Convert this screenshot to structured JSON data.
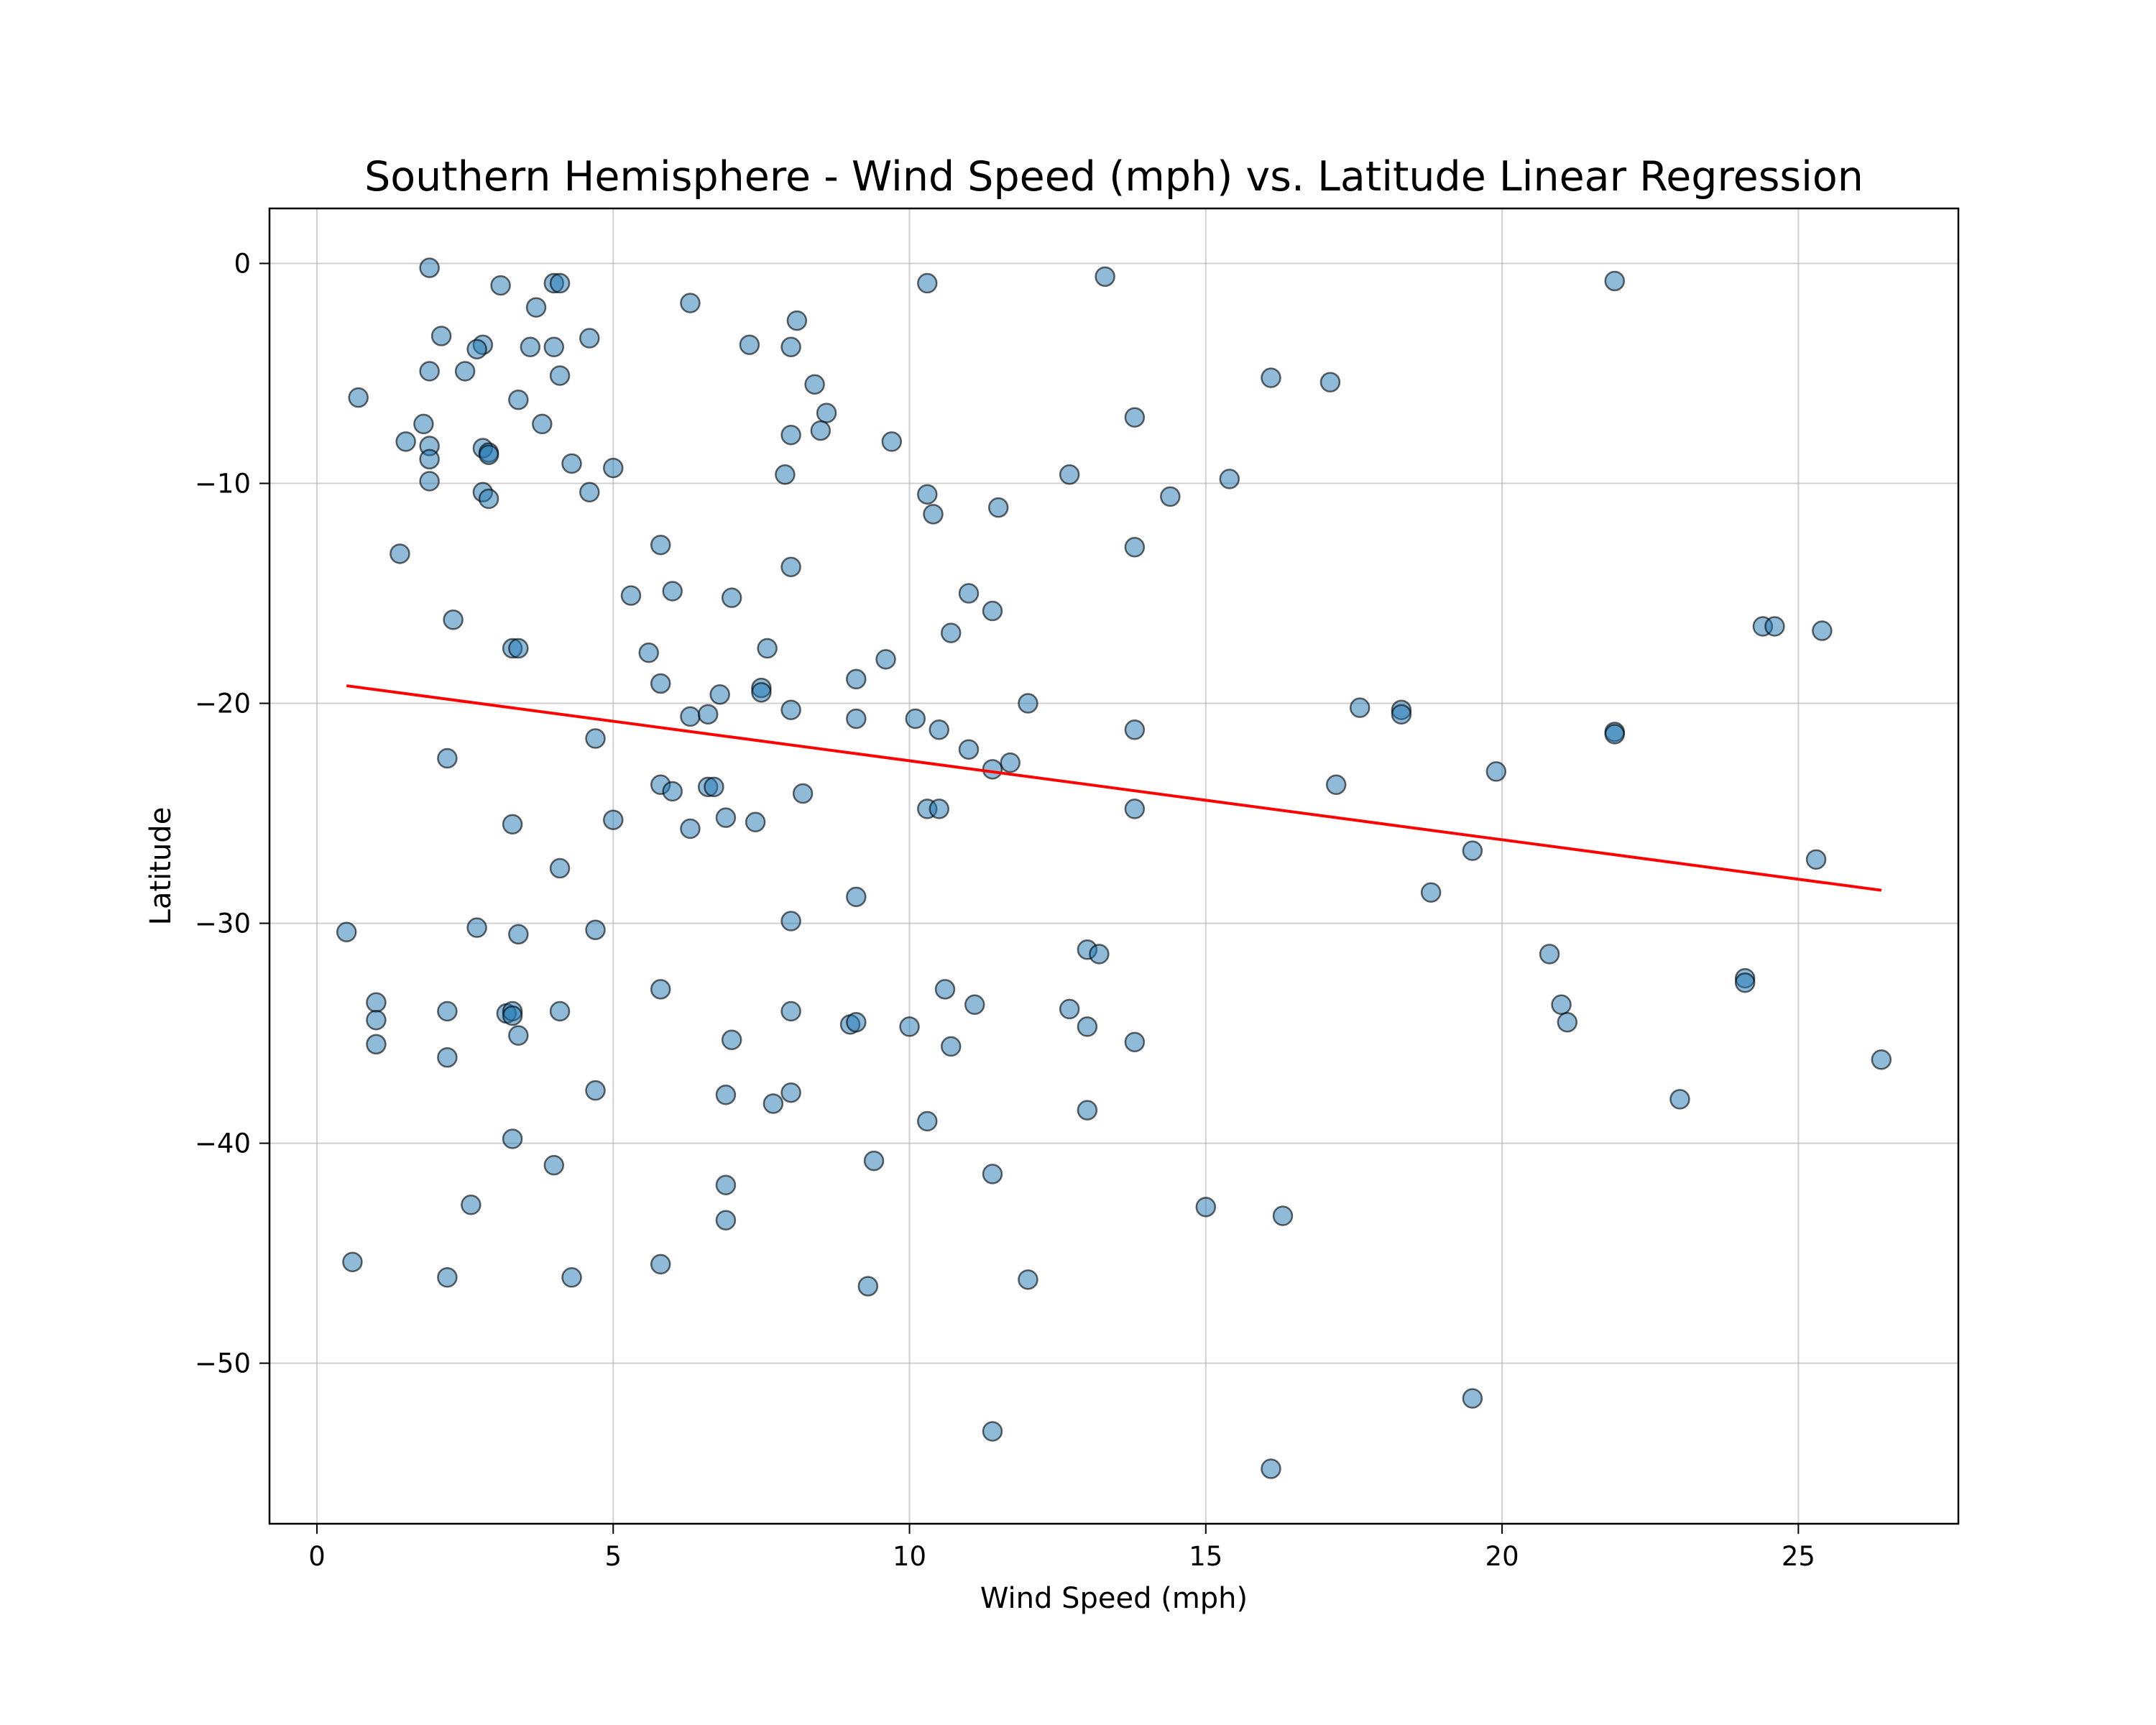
{
  "chart_data": {
    "type": "scatter",
    "title": "Southern Hemisphere - Wind Speed (mph) vs. Latitude Linear Regression",
    "xlabel": "Wind Speed (mph)",
    "ylabel": "Latitude",
    "xlim": [
      -0.8,
      27.7
    ],
    "ylim": [
      -57.3,
      2.5
    ],
    "xticks": [
      0,
      5,
      10,
      15,
      20,
      25
    ],
    "yticks": [
      0,
      -10,
      -20,
      -30,
      -40,
      -50
    ],
    "grid": true,
    "point_color": "#1f77b4",
    "line_color": "#ff0000",
    "points": [
      [
        1.9,
        -0.2
      ],
      [
        3.1,
        -1.0
      ],
      [
        4.0,
        -0.9
      ],
      [
        4.1,
        -0.9
      ],
      [
        6.3,
        -1.8
      ],
      [
        10.3,
        -0.9
      ],
      [
        13.3,
        -0.6
      ],
      [
        21.9,
        -0.8
      ],
      [
        3.7,
        -2.0
      ],
      [
        8.1,
        -2.6
      ],
      [
        2.1,
        -3.3
      ],
      [
        2.8,
        -3.7
      ],
      [
        2.7,
        -3.9
      ],
      [
        3.6,
        -3.8
      ],
      [
        4.0,
        -3.8
      ],
      [
        4.6,
        -3.4
      ],
      [
        7.3,
        -3.7
      ],
      [
        8.0,
        -3.8
      ],
      [
        1.9,
        -4.9
      ],
      [
        2.5,
        -4.9
      ],
      [
        4.1,
        -5.1
      ],
      [
        8.4,
        -5.5
      ],
      [
        16.1,
        -5.2
      ],
      [
        17.1,
        -5.4
      ],
      [
        0.7,
        -6.1
      ],
      [
        3.4,
        -6.2
      ],
      [
        8.6,
        -6.8
      ],
      [
        13.8,
        -7.0
      ],
      [
        1.8,
        -7.3
      ],
      [
        3.8,
        -7.3
      ],
      [
        8.5,
        -7.6
      ],
      [
        8.0,
        -7.8
      ],
      [
        1.5,
        -8.1
      ],
      [
        9.7,
        -8.1
      ],
      [
        1.9,
        -8.3
      ],
      [
        2.8,
        -8.4
      ],
      [
        2.9,
        -8.6
      ],
      [
        2.9,
        -8.7
      ],
      [
        1.9,
        -8.9
      ],
      [
        4.3,
        -9.1
      ],
      [
        5.0,
        -9.3
      ],
      [
        7.9,
        -9.6
      ],
      [
        12.7,
        -9.6
      ],
      [
        15.4,
        -9.8
      ],
      [
        1.9,
        -9.9
      ],
      [
        2.8,
        -10.4
      ],
      [
        4.6,
        -10.4
      ],
      [
        10.3,
        -10.5
      ],
      [
        14.4,
        -10.6
      ],
      [
        2.9,
        -10.7
      ],
      [
        11.5,
        -11.1
      ],
      [
        10.4,
        -11.4
      ],
      [
        5.8,
        -12.8
      ],
      [
        13.8,
        -12.9
      ],
      [
        1.4,
        -13.2
      ],
      [
        8.0,
        -13.8
      ],
      [
        11.0,
        -15.0
      ],
      [
        5.3,
        -15.1
      ],
      [
        6.0,
        -14.9
      ],
      [
        7.0,
        -15.2
      ],
      [
        11.4,
        -15.8
      ],
      [
        2.3,
        -16.2
      ],
      [
        10.7,
        -16.8
      ],
      [
        24.4,
        -16.5
      ],
      [
        24.6,
        -16.5
      ],
      [
        25.4,
        -16.7
      ],
      [
        3.3,
        -17.5
      ],
      [
        3.4,
        -17.5
      ],
      [
        5.6,
        -17.7
      ],
      [
        7.6,
        -17.5
      ],
      [
        9.6,
        -18.0
      ],
      [
        5.8,
        -19.1
      ],
      [
        9.1,
        -18.9
      ],
      [
        7.5,
        -19.3
      ],
      [
        6.8,
        -19.6
      ],
      [
        7.5,
        -19.5
      ],
      [
        12.0,
        -20.0
      ],
      [
        17.6,
        -20.2
      ],
      [
        8.0,
        -20.3
      ],
      [
        18.3,
        -20.3
      ],
      [
        18.3,
        -20.5
      ],
      [
        6.3,
        -20.6
      ],
      [
        6.6,
        -20.5
      ],
      [
        9.1,
        -20.7
      ],
      [
        10.1,
        -20.7
      ],
      [
        10.5,
        -21.2
      ],
      [
        13.8,
        -21.2
      ],
      [
        21.9,
        -21.3
      ],
      [
        21.9,
        -21.4
      ],
      [
        4.7,
        -21.6
      ],
      [
        11.0,
        -22.1
      ],
      [
        2.2,
        -22.5
      ],
      [
        11.7,
        -22.7
      ],
      [
        11.4,
        -23.0
      ],
      [
        19.9,
        -23.1
      ],
      [
        5.8,
        -23.7
      ],
      [
        6.0,
        -24.0
      ],
      [
        6.6,
        -23.8
      ],
      [
        6.7,
        -23.8
      ],
      [
        8.2,
        -24.1
      ],
      [
        17.2,
        -23.7
      ],
      [
        10.3,
        -24.8
      ],
      [
        10.5,
        -24.8
      ],
      [
        13.8,
        -24.8
      ],
      [
        6.9,
        -25.2
      ],
      [
        6.3,
        -25.7
      ],
      [
        7.4,
        -25.4
      ],
      [
        3.3,
        -25.5
      ],
      [
        5.0,
        -25.3
      ],
      [
        19.5,
        -26.7
      ],
      [
        25.3,
        -27.1
      ],
      [
        4.1,
        -27.5
      ],
      [
        18.8,
        -28.6
      ],
      [
        9.1,
        -28.8
      ],
      [
        2.7,
        -30.2
      ],
      [
        4.7,
        -30.3
      ],
      [
        8.0,
        -29.9
      ],
      [
        0.5,
        -30.4
      ],
      [
        3.4,
        -30.5
      ],
      [
        13.0,
        -31.2
      ],
      [
        13.2,
        -31.4
      ],
      [
        20.8,
        -31.4
      ],
      [
        24.1,
        -32.5
      ],
      [
        24.1,
        -32.7
      ],
      [
        5.8,
        -33.0
      ],
      [
        10.6,
        -33.0
      ],
      [
        1.0,
        -33.6
      ],
      [
        11.1,
        -33.7
      ],
      [
        21.0,
        -33.7
      ],
      [
        2.2,
        -34.0
      ],
      [
        3.2,
        -34.1
      ],
      [
        3.3,
        -34.0
      ],
      [
        3.3,
        -34.2
      ],
      [
        4.1,
        -34.0
      ],
      [
        8.0,
        -34.0
      ],
      [
        12.7,
        -33.9
      ],
      [
        1.0,
        -34.4
      ],
      [
        9.0,
        -34.6
      ],
      [
        9.1,
        -34.5
      ],
      [
        10.0,
        -34.7
      ],
      [
        13.0,
        -34.7
      ],
      [
        21.1,
        -34.5
      ],
      [
        3.4,
        -35.1
      ],
      [
        1.0,
        -35.5
      ],
      [
        7.0,
        -35.3
      ],
      [
        10.7,
        -35.6
      ],
      [
        13.8,
        -35.4
      ],
      [
        2.2,
        -36.1
      ],
      [
        26.4,
        -36.2
      ],
      [
        4.7,
        -37.6
      ],
      [
        6.9,
        -37.8
      ],
      [
        8.0,
        -37.7
      ],
      [
        7.7,
        -38.2
      ],
      [
        23.0,
        -38.0
      ],
      [
        13.0,
        -38.5
      ],
      [
        10.3,
        -39.0
      ],
      [
        3.3,
        -39.8
      ],
      [
        4.0,
        -41.0
      ],
      [
        9.4,
        -40.8
      ],
      [
        11.4,
        -41.4
      ],
      [
        6.9,
        -41.9
      ],
      [
        2.6,
        -42.8
      ],
      [
        15.0,
        -42.9
      ],
      [
        16.3,
        -43.3
      ],
      [
        6.9,
        -43.5
      ],
      [
        0.6,
        -45.4
      ],
      [
        5.8,
        -45.5
      ],
      [
        2.2,
        -46.1
      ],
      [
        4.3,
        -46.1
      ],
      [
        9.3,
        -46.5
      ],
      [
        12.0,
        -46.2
      ],
      [
        19.5,
        -51.6
      ],
      [
        11.4,
        -53.1
      ],
      [
        16.1,
        -54.8
      ]
    ],
    "regression": {
      "x": [
        0.5,
        26.4
      ],
      "y": [
        -19.2,
        -28.5
      ]
    }
  }
}
